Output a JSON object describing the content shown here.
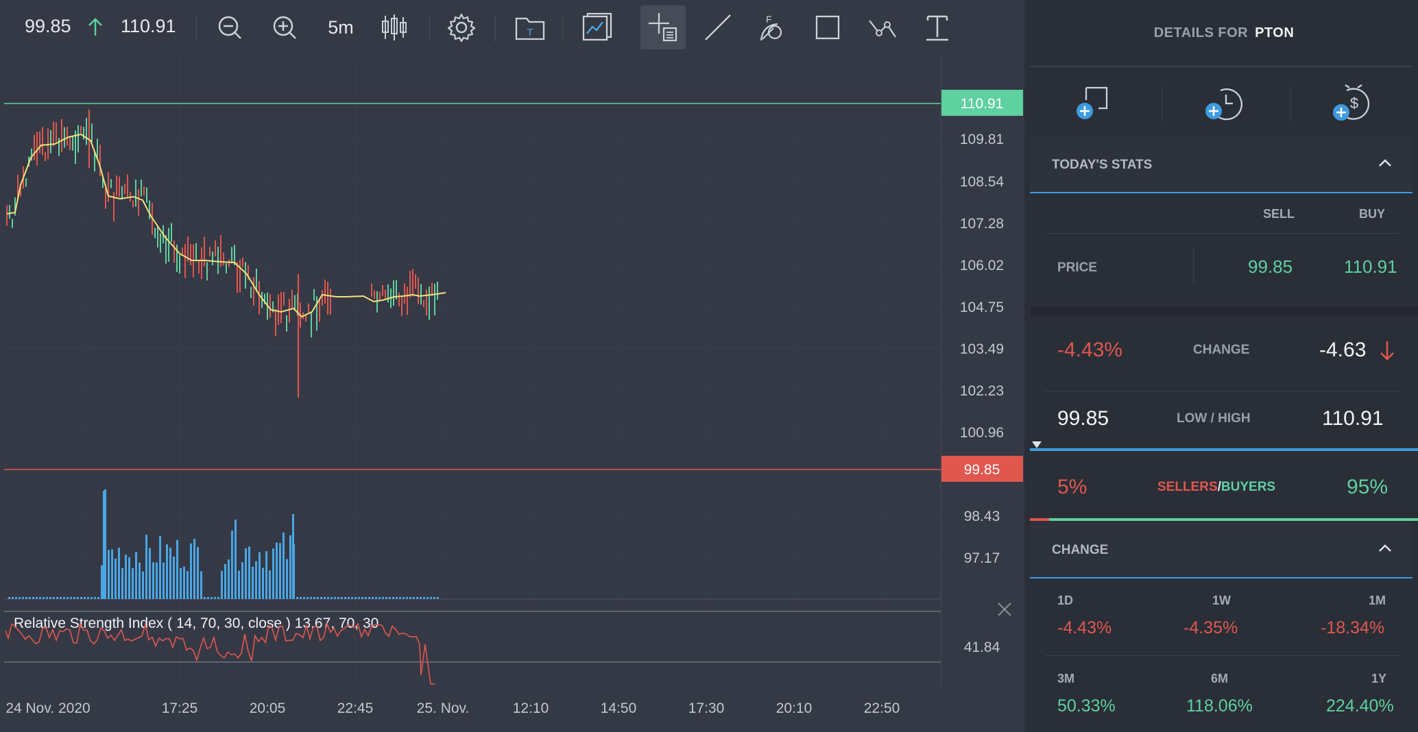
{
  "toolbar": {
    "sell_price": "99.85",
    "buy_price": "110.91",
    "timeframe": "5m",
    "icons": [
      "zoom-out-icon",
      "zoom-in-icon",
      "candlestick-icon",
      "settings-icon",
      "template-folder-icon",
      "indicators-icon",
      "crosshair-icon",
      "trendline-icon",
      "fibonacci-icon",
      "rectangle-icon",
      "polyline-icon",
      "text-tool-icon"
    ]
  },
  "chart": {
    "price_ticks": [
      "109.81",
      "108.54",
      "107.28",
      "106.02",
      "104.75",
      "103.49",
      "102.23",
      "100.96",
      "98.43",
      "97.17"
    ],
    "buy_line_label": "110.91",
    "sell_line_label": "99.85",
    "time_ticks": [
      "24 Nov. 2020",
      "17:25",
      "20:05",
      "22:45",
      "25. Nov.",
      "12:10",
      "14:50",
      "17:30",
      "20:10",
      "22:50"
    ],
    "rsi_label": "Relative Strength Index ( 14, 70, 30, close ) 13.67, 70, 30",
    "rsi_tick": "41.84",
    "colors": {
      "up": "#5fd0a0",
      "down": "#e0574f",
      "ma": "#f3e27a",
      "volume": "#4aa7e6",
      "rsi": "#e0574f"
    }
  },
  "details": {
    "title_prefix": "DETAILS FOR",
    "symbol": "PTON",
    "icons": [
      "add-alert-icon",
      "add-order-icon",
      "add-price-alert-icon"
    ]
  },
  "todays_stats": {
    "title": "TODAY'S STATS",
    "sell_header": "SELL",
    "buy_header": "BUY",
    "price_label": "PRICE",
    "sell_price": "99.85",
    "buy_price": "110.91",
    "change_pct": "-4.43%",
    "change_label": "CHANGE",
    "change_abs": "-4.63",
    "low": "99.85",
    "lowhigh_label": "LOW / HIGH",
    "high": "110.91",
    "sellers_pct": "5%",
    "sellers_label": "SELLERS",
    "slash": "/",
    "buyers_label": "BUYERS",
    "buyers_pct": "95%",
    "sellers_fraction": 0.05
  },
  "change": {
    "title": "CHANGE",
    "periods": [
      {
        "label": "1D",
        "value": "-4.43%",
        "dir": "down"
      },
      {
        "label": "1W",
        "value": "-4.35%",
        "dir": "down"
      },
      {
        "label": "1M",
        "value": "-18.34%",
        "dir": "down"
      },
      {
        "label": "3M",
        "value": "50.33%",
        "dir": "up"
      },
      {
        "label": "6M",
        "value": "118.06%",
        "dir": "up"
      },
      {
        "label": "1Y",
        "value": "224.40%",
        "dir": "up"
      }
    ]
  }
}
